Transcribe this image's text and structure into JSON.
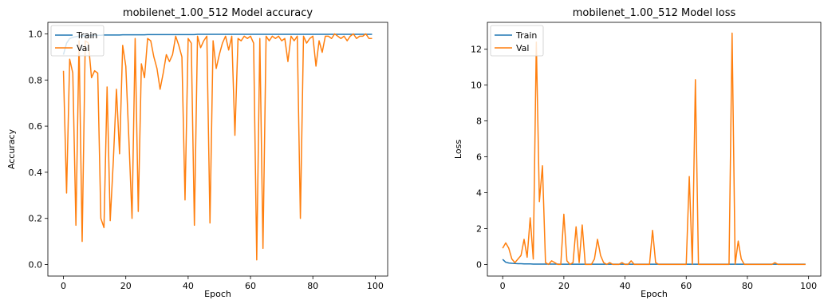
{
  "colors": {
    "train": "#1f77b4",
    "val": "#ff7f0e"
  },
  "chart_data": [
    {
      "type": "line",
      "title": "mobilenet_1.00_512 Model accuracy",
      "xlabel": "Epoch",
      "ylabel": "Accuracy",
      "xlim": [
        -5,
        104
      ],
      "ylim": [
        -0.05,
        1.05
      ],
      "xticks": [
        0,
        20,
        40,
        60,
        80,
        100
      ],
      "xtick_labels": [
        "0",
        "20",
        "40",
        "60",
        "80",
        "100"
      ],
      "yticks": [
        0.0,
        0.2,
        0.4,
        0.6,
        0.8,
        1.0
      ],
      "ytick_labels": [
        "0.0",
        "0.2",
        "0.4",
        "0.6",
        "0.8",
        "1.0"
      ],
      "legend": "upper left",
      "grid": false,
      "series": [
        {
          "name": "Train",
          "values": [
            0.91,
            0.96,
            0.98,
            0.985,
            0.988,
            0.99,
            0.991,
            0.992,
            0.993,
            0.993,
            0.994,
            0.994,
            0.994,
            0.995,
            0.995,
            0.995,
            0.995,
            0.995,
            0.995,
            0.996,
            0.996,
            0.996,
            0.996,
            0.996,
            0.996,
            0.996,
            0.996,
            0.997,
            0.997,
            0.997,
            0.997,
            0.997,
            0.997,
            0.997,
            0.997,
            0.997,
            0.997,
            0.997,
            0.997,
            0.997,
            0.997,
            0.997,
            0.997,
            0.998,
            0.998,
            0.998,
            0.998,
            0.998,
            0.998,
            0.998,
            0.998,
            0.998,
            0.998,
            0.998,
            0.998,
            0.998,
            0.998,
            0.998,
            0.998,
            0.998,
            0.998,
            0.998,
            0.998,
            0.998,
            0.998,
            0.998,
            0.998,
            0.998,
            0.998,
            0.998,
            0.998,
            0.998,
            0.998,
            0.998,
            0.998,
            0.998,
            0.998,
            0.998,
            0.998,
            0.998,
            0.998,
            0.998,
            0.998,
            0.998,
            0.998,
            0.998,
            0.998,
            0.998,
            0.998,
            0.998,
            0.998,
            0.998,
            0.998,
            0.998,
            0.998,
            0.998,
            0.998,
            0.998,
            0.998,
            0.998
          ]
        },
        {
          "name": "Val",
          "values": [
            0.84,
            0.31,
            0.89,
            0.83,
            0.17,
            0.97,
            0.1,
            0.97,
            0.96,
            0.81,
            0.84,
            0.83,
            0.2,
            0.16,
            0.77,
            0.19,
            0.45,
            0.76,
            0.48,
            0.95,
            0.86,
            0.54,
            0.2,
            0.98,
            0.23,
            0.87,
            0.81,
            0.98,
            0.97,
            0.9,
            0.85,
            0.76,
            0.83,
            0.91,
            0.88,
            0.91,
            0.99,
            0.95,
            0.9,
            0.28,
            0.98,
            0.96,
            0.17,
            0.99,
            0.94,
            0.97,
            0.99,
            0.18,
            0.97,
            0.85,
            0.91,
            0.96,
            0.99,
            0.93,
            0.99,
            0.56,
            0.98,
            0.97,
            0.99,
            0.98,
            0.99,
            0.96,
            0.02,
            0.98,
            0.07,
            0.99,
            0.97,
            0.99,
            0.98,
            0.99,
            0.97,
            0.98,
            0.88,
            0.99,
            0.97,
            0.99,
            0.2,
            0.99,
            0.96,
            0.98,
            0.99,
            0.86,
            0.97,
            0.92,
            0.99,
            0.99,
            0.98,
            1.0,
            0.99,
            0.98,
            0.99,
            0.97,
            0.99,
            1.0,
            0.98,
            0.99,
            0.99,
            1.0,
            0.98,
            0.98
          ]
        }
      ]
    },
    {
      "type": "line",
      "title": "mobilenet_1.00_512 Model loss",
      "xlabel": "Epoch",
      "ylabel": "Loss",
      "xlim": [
        -5,
        104
      ],
      "ylim": [
        -0.65,
        13.5
      ],
      "xticks": [
        0,
        20,
        40,
        60,
        80,
        100
      ],
      "xtick_labels": [
        "0",
        "20",
        "40",
        "60",
        "80",
        "100"
      ],
      "yticks": [
        0,
        2,
        4,
        6,
        8,
        10,
        12
      ],
      "ytick_labels": [
        "0",
        "2",
        "4",
        "6",
        "8",
        "10",
        "12"
      ],
      "legend": "upper left",
      "grid": false,
      "series": [
        {
          "name": "Train",
          "values": [
            0.28,
            0.12,
            0.08,
            0.06,
            0.05,
            0.04,
            0.04,
            0.03,
            0.03,
            0.03,
            0.02,
            0.02,
            0.02,
            0.02,
            0.02,
            0.02,
            0.02,
            0.02,
            0.02,
            0.01,
            0.01,
            0.01,
            0.01,
            0.01,
            0.01,
            0.01,
            0.01,
            0.01,
            0.01,
            0.01,
            0.01,
            0.01,
            0.01,
            0.01,
            0.01,
            0.01,
            0.01,
            0.01,
            0.01,
            0.01,
            0.01,
            0.01,
            0.01,
            0.01,
            0.01,
            0.01,
            0.01,
            0.01,
            0.01,
            0.01,
            0.01,
            0.01,
            0.01,
            0.01,
            0.01,
            0.01,
            0.01,
            0.01,
            0.01,
            0.01,
            0.01,
            0.01,
            0.01,
            0.01,
            0.01,
            0.01,
            0.01,
            0.01,
            0.01,
            0.01,
            0.01,
            0.01,
            0.01,
            0.01,
            0.01,
            0.01,
            0.01,
            0.01,
            0.01,
            0.01,
            0.01,
            0.01,
            0.01,
            0.01,
            0.01,
            0.01,
            0.01,
            0.01,
            0.01,
            0.01,
            0.01,
            0.01,
            0.01,
            0.01,
            0.01,
            0.01,
            0.01,
            0.01,
            0.01,
            0.01
          ]
        },
        {
          "name": "Val",
          "values": [
            0.9,
            1.2,
            0.9,
            0.3,
            0.1,
            0.3,
            0.5,
            1.4,
            0.4,
            2.6,
            0.3,
            12.4,
            3.5,
            5.5,
            0.1,
            0.0,
            0.2,
            0.1,
            0.0,
            0.0,
            2.8,
            0.2,
            0.0,
            0.1,
            2.1,
            0.1,
            2.2,
            0.0,
            0.0,
            0.0,
            0.3,
            1.4,
            0.5,
            0.1,
            0.0,
            0.1,
            0.0,
            0.0,
            0.0,
            0.1,
            0.0,
            0.0,
            0.2,
            0.0,
            0.0,
            0.0,
            0.0,
            0.0,
            0.0,
            1.9,
            0.1,
            0.0,
            0.0,
            0.0,
            0.0,
            0.0,
            0.0,
            0.0,
            0.0,
            0.0,
            0.0,
            4.9,
            0.0,
            10.3,
            0.0,
            0.0,
            0.0,
            0.0,
            0.0,
            0.0,
            0.0,
            0.0,
            0.0,
            0.0,
            0.0,
            12.9,
            0.0,
            1.3,
            0.3,
            0.0,
            0.0,
            0.0,
            0.0,
            0.0,
            0.0,
            0.0,
            0.0,
            0.0,
            0.0,
            0.1,
            0.0,
            0.0,
            0.0,
            0.0,
            0.0,
            0.0,
            0.0,
            0.0,
            0.0,
            0.0
          ]
        }
      ]
    }
  ]
}
